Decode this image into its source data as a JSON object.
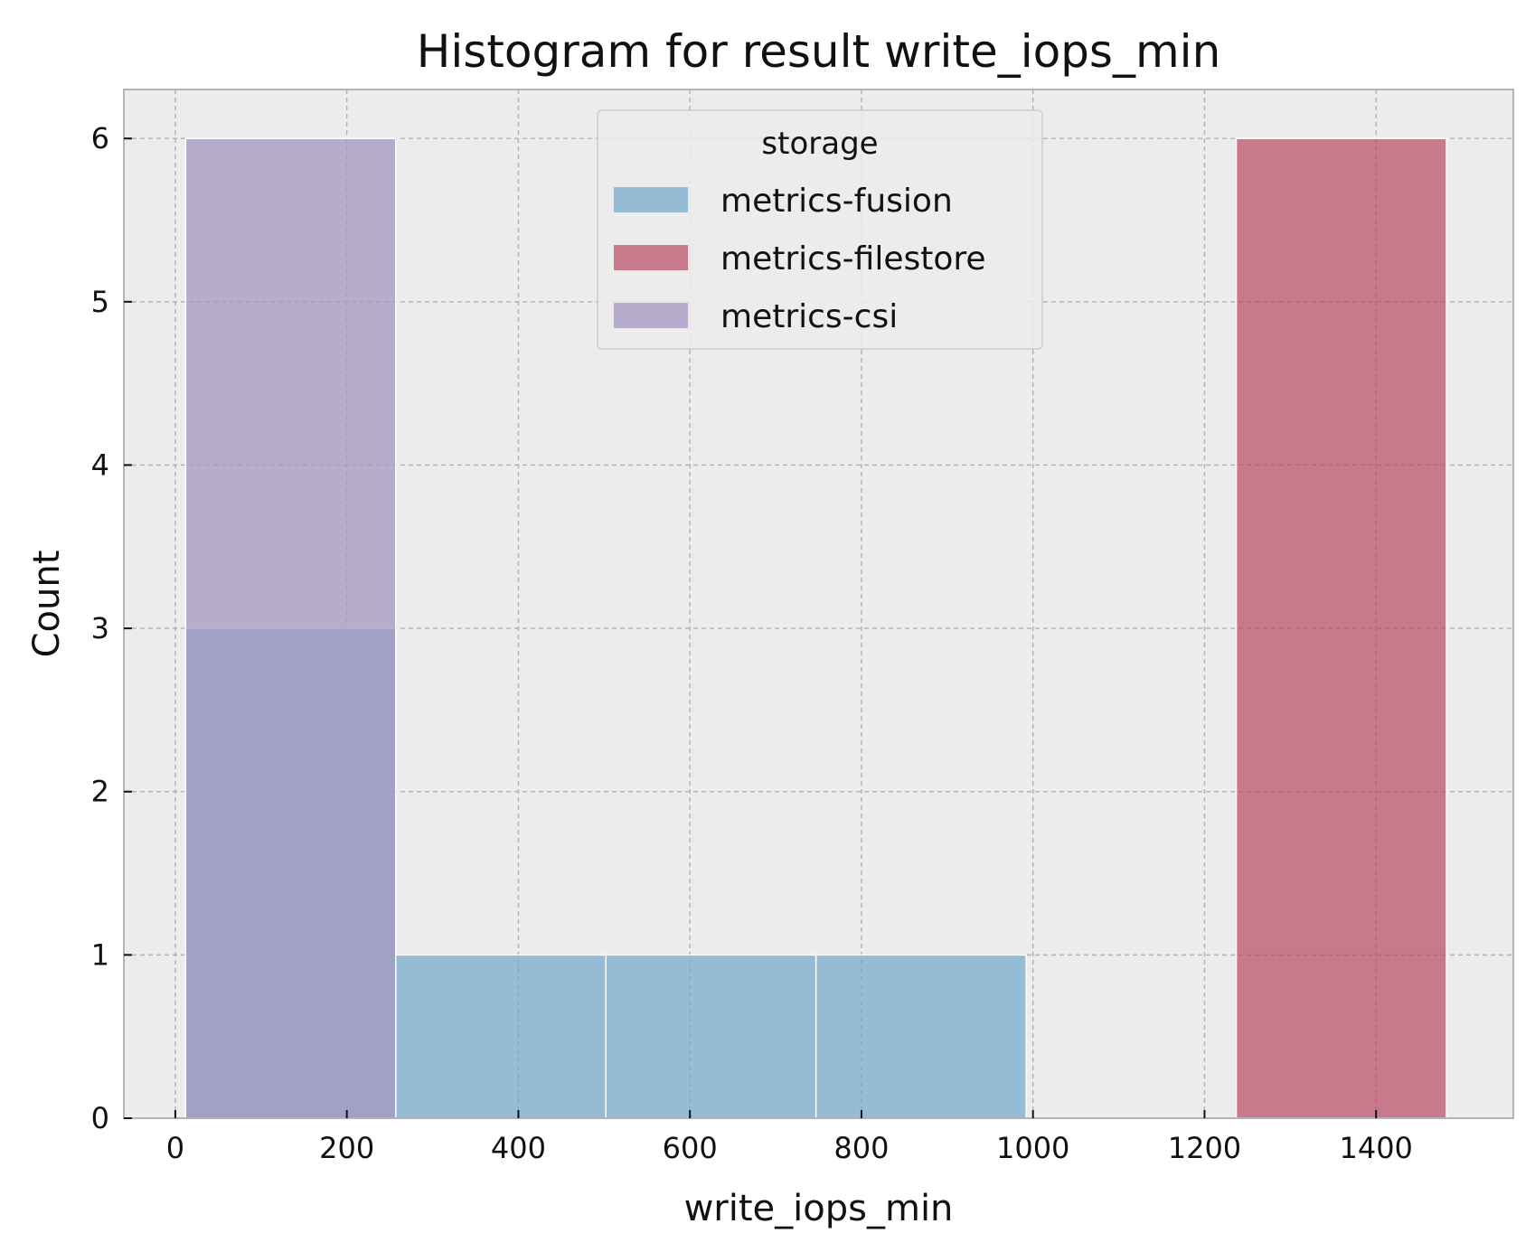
{
  "chart_data": {
    "type": "histogram",
    "title": "Histogram for result write_iops_min",
    "xlabel": "write_iops_min",
    "ylabel": "Count",
    "xlim": [
      -60,
      1560
    ],
    "ylim": [
      0,
      6.3
    ],
    "xticks": [
      0,
      200,
      400,
      600,
      800,
      1000,
      1200,
      1400
    ],
    "yticks": [
      0,
      1,
      2,
      3,
      4,
      5,
      6
    ],
    "grid": true,
    "legend": {
      "title": "storage",
      "placement": "top-center",
      "entries": [
        "metrics-fusion",
        "metrics-filestore",
        "metrics-csi"
      ]
    },
    "bin_edges": [
      12,
      257,
      502,
      747,
      992,
      1237,
      1482
    ],
    "series": [
      {
        "name": "metrics-fusion",
        "color": "#6fa8cb",
        "opacity": 0.7,
        "values": [
          3,
          1,
          1,
          1,
          0,
          0
        ]
      },
      {
        "name": "metrics-filestore",
        "color": "#b84a62",
        "opacity": 0.7,
        "values": [
          0,
          0,
          0,
          0,
          0,
          6
        ]
      },
      {
        "name": "metrics-csi",
        "color": "#a597c0",
        "opacity": 0.75,
        "values": [
          6,
          0,
          0,
          0,
          0,
          0
        ]
      }
    ],
    "colors": {
      "plot_background": "#ececec",
      "grid": "#b0b0b0",
      "axis": "#b5b5b5",
      "bar_edge": "#ffffff"
    }
  }
}
